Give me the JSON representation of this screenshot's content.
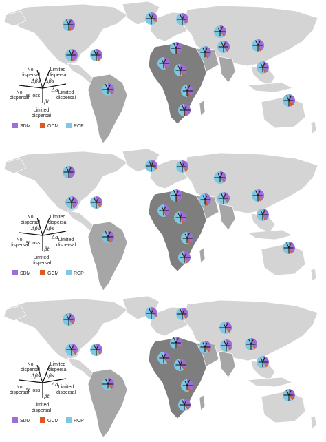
{
  "colors": {
    "sdm": "#9b6fd6",
    "gcm": "#e05a1e",
    "rcp": "#7fc7e3",
    "land_light": "#d4d4d4",
    "land_mid": "#a6a6a6",
    "land_dark": "#7e7e7e",
    "pie_spokes": "#1a1a1a"
  },
  "legend": {
    "top_left": "No\ndispersal",
    "top_right": "Limited\ndispersal",
    "delta_beta_left": "Δβs",
    "delta_beta_right": "Δβs",
    "left": "No\ndispersal",
    "left_metric": "% loss",
    "right_metric": "Δα",
    "right": "Limited\ndispersal",
    "bottom_metric": "βt",
    "bottom": "Limited\ndispersal",
    "swatches": [
      "SDM",
      "GCM",
      "RCP"
    ]
  },
  "panels": [
    {
      "id": "panel-1",
      "pies": [
        {
          "region": "north-america-north",
          "sdm": 0.42,
          "gcm": 0.08,
          "rcp": 0.5
        },
        {
          "region": "greenland",
          "sdm": 0.3,
          "gcm": 0.05,
          "rcp": 0.65
        },
        {
          "region": "north-america-south",
          "sdm": 0.45,
          "gcm": 0.05,
          "rcp": 0.5
        },
        {
          "region": "caribbean",
          "sdm": 0.4,
          "gcm": 0.05,
          "rcp": 0.55
        },
        {
          "region": "south-america",
          "sdm": 0.35,
          "gcm": 0.05,
          "rcp": 0.6
        },
        {
          "region": "north-europe",
          "sdm": 0.35,
          "gcm": 0.05,
          "rcp": 0.6
        },
        {
          "region": "west-africa",
          "sdm": 0.4,
          "gcm": 0.05,
          "rcp": 0.55
        },
        {
          "region": "sahara",
          "sdm": 0.45,
          "gcm": 0.05,
          "rcp": 0.5
        },
        {
          "region": "east-africa",
          "sdm": 0.4,
          "gcm": 0.05,
          "rcp": 0.55
        },
        {
          "region": "central-africa",
          "sdm": 0.4,
          "gcm": 0.1,
          "rcp": 0.5
        },
        {
          "region": "southern-africa",
          "sdm": 0.45,
          "gcm": 0.05,
          "rcp": 0.5
        },
        {
          "region": "middle-east",
          "sdm": 0.4,
          "gcm": 0.05,
          "rcp": 0.55
        },
        {
          "region": "central-asia",
          "sdm": 0.35,
          "gcm": 0.05,
          "rcp": 0.6
        },
        {
          "region": "siberia",
          "sdm": 0.35,
          "gcm": 0.05,
          "rcp": 0.6
        },
        {
          "region": "east-asia",
          "sdm": 0.4,
          "gcm": 0.05,
          "rcp": 0.55
        },
        {
          "region": "southeast-asia",
          "sdm": 0.4,
          "gcm": 0.05,
          "rcp": 0.55
        },
        {
          "region": "australia",
          "sdm": 0.35,
          "gcm": 0.1,
          "rcp": 0.55
        }
      ]
    },
    {
      "id": "panel-2",
      "pies": [
        {
          "region": "north-america-north",
          "sdm": 0.45,
          "gcm": 0.05,
          "rcp": 0.5
        },
        {
          "region": "greenland",
          "sdm": 0.3,
          "gcm": 0.05,
          "rcp": 0.65
        },
        {
          "region": "north-america-south",
          "sdm": 0.4,
          "gcm": 0.05,
          "rcp": 0.55
        },
        {
          "region": "caribbean",
          "sdm": 0.35,
          "gcm": 0.05,
          "rcp": 0.6
        },
        {
          "region": "south-america",
          "sdm": 0.4,
          "gcm": 0.05,
          "rcp": 0.55
        },
        {
          "region": "north-europe",
          "sdm": 0.35,
          "gcm": 0.05,
          "rcp": 0.6
        },
        {
          "region": "west-africa",
          "sdm": 0.4,
          "gcm": 0.05,
          "rcp": 0.55
        },
        {
          "region": "sahara",
          "sdm": 0.45,
          "gcm": 0.05,
          "rcp": 0.5
        },
        {
          "region": "east-africa",
          "sdm": 0.4,
          "gcm": 0.05,
          "rcp": 0.55
        },
        {
          "region": "central-africa",
          "sdm": 0.4,
          "gcm": 0.05,
          "rcp": 0.55
        },
        {
          "region": "southern-africa",
          "sdm": 0.4,
          "gcm": 0.05,
          "rcp": 0.55
        },
        {
          "region": "middle-east",
          "sdm": 0.4,
          "gcm": 0.1,
          "rcp": 0.5
        },
        {
          "region": "central-asia",
          "sdm": 0.35,
          "gcm": 0.05,
          "rcp": 0.6
        },
        {
          "region": "siberia",
          "sdm": 0.35,
          "gcm": 0.05,
          "rcp": 0.6
        },
        {
          "region": "east-asia",
          "sdm": 0.4,
          "gcm": 0.05,
          "rcp": 0.55
        },
        {
          "region": "southeast-asia",
          "sdm": 0.4,
          "gcm": 0.05,
          "rcp": 0.55
        },
        {
          "region": "australia",
          "sdm": 0.4,
          "gcm": 0.05,
          "rcp": 0.55
        }
      ]
    },
    {
      "id": "panel-3",
      "pies": [
        {
          "region": "north-america-north",
          "sdm": 0.35,
          "gcm": 0.05,
          "rcp": 0.6
        },
        {
          "region": "greenland",
          "sdm": 0.3,
          "gcm": 0.05,
          "rcp": 0.65
        },
        {
          "region": "north-america-south",
          "sdm": 0.35,
          "gcm": 0.05,
          "rcp": 0.6
        },
        {
          "region": "caribbean",
          "sdm": 0.35,
          "gcm": 0.05,
          "rcp": 0.6
        },
        {
          "region": "south-america",
          "sdm": 0.35,
          "gcm": 0.05,
          "rcp": 0.6
        },
        {
          "region": "north-europe",
          "sdm": 0.35,
          "gcm": 0.05,
          "rcp": 0.6
        },
        {
          "region": "west-africa",
          "sdm": 0.35,
          "gcm": 0.05,
          "rcp": 0.6
        },
        {
          "region": "sahara",
          "sdm": 0.4,
          "gcm": 0.05,
          "rcp": 0.55
        },
        {
          "region": "east-africa",
          "sdm": 0.35,
          "gcm": 0.05,
          "rcp": 0.6
        },
        {
          "region": "central-africa",
          "sdm": 0.4,
          "gcm": 0.05,
          "rcp": 0.55
        },
        {
          "region": "southern-africa",
          "sdm": 0.35,
          "gcm": 0.05,
          "rcp": 0.6
        },
        {
          "region": "middle-east",
          "sdm": 0.35,
          "gcm": 0.05,
          "rcp": 0.6
        },
        {
          "region": "central-asia",
          "sdm": 0.35,
          "gcm": 0.05,
          "rcp": 0.6
        },
        {
          "region": "siberia",
          "sdm": 0.35,
          "gcm": 0.05,
          "rcp": 0.6
        },
        {
          "region": "east-asia",
          "sdm": 0.35,
          "gcm": 0.05,
          "rcp": 0.6
        },
        {
          "region": "southeast-asia",
          "sdm": 0.35,
          "gcm": 0.05,
          "rcp": 0.6
        },
        {
          "region": "australia",
          "sdm": 0.3,
          "gcm": 0.1,
          "rcp": 0.6
        }
      ]
    }
  ]
}
